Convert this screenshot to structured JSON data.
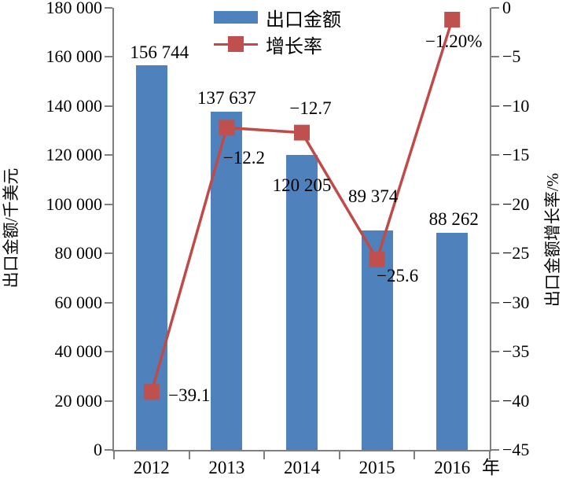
{
  "chart_data": {
    "type": "bar+line combo",
    "categories": [
      "2012",
      "2013",
      "2014",
      "2015",
      "2016"
    ],
    "x_axis": {
      "unit_suffix": "年"
    },
    "left_axis": {
      "label": "出口金额/千美元",
      "min": 0,
      "max": 180000,
      "step": 20000,
      "tick_labels": [
        "180 000",
        "160 000",
        "140 000",
        "120 000",
        "100 000",
        "80 000",
        "60 000",
        "40 000",
        "20 000",
        "0"
      ]
    },
    "right_axis": {
      "label": "出口金额增长率/%",
      "min": -45,
      "max": 0,
      "step": 5,
      "tick_labels": [
        "0",
        "−5",
        "−10",
        "−15",
        "−20",
        "−25",
        "−30",
        "−35",
        "−40",
        "−45"
      ]
    },
    "series": [
      {
        "name": "出口金额",
        "type": "bar",
        "color": "#4F81BD",
        "values": [
          156744,
          137637,
          120205,
          89374,
          88262
        ],
        "value_labels": [
          "156 744",
          "137 637",
          "120 205",
          "89 374",
          "88 262"
        ]
      },
      {
        "name": "增长率",
        "type": "line",
        "color": "#BE4B48",
        "marker_color": "#C0504D",
        "values": [
          -39.1,
          -12.2,
          -12.7,
          -25.6,
          -1.2
        ],
        "value_labels": [
          "−39.1",
          "−12.2",
          "−12.7",
          "−25.6",
          "−1.20%"
        ]
      }
    ],
    "legend_position": "top",
    "grid": false,
    "axis_color": "#7f7f7f"
  }
}
